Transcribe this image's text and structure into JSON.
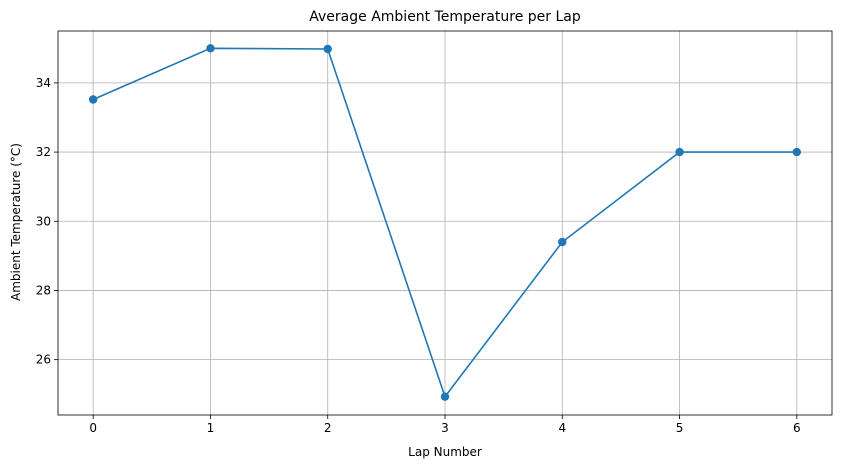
{
  "chart_data": {
    "type": "line",
    "title": "Average Ambient Temperature per Lap",
    "xlabel": "Lap Number",
    "ylabel": "Ambient Temperature (°C)",
    "x": [
      0,
      1,
      2,
      3,
      4,
      5,
      6
    ],
    "series": [
      {
        "values": [
          33.52,
          35.0,
          34.98,
          24.93,
          29.4,
          32.0,
          32.0
        ]
      }
    ],
    "xlim": [
      -0.3,
      6.3
    ],
    "ylim": [
      24.4,
      35.5
    ],
    "xticks": [
      "0",
      "1",
      "2",
      "3",
      "4",
      "5",
      "6"
    ],
    "yticks": [
      "26",
      "28",
      "30",
      "32",
      "34"
    ],
    "grid": true,
    "line_color": "#1f77b4"
  }
}
